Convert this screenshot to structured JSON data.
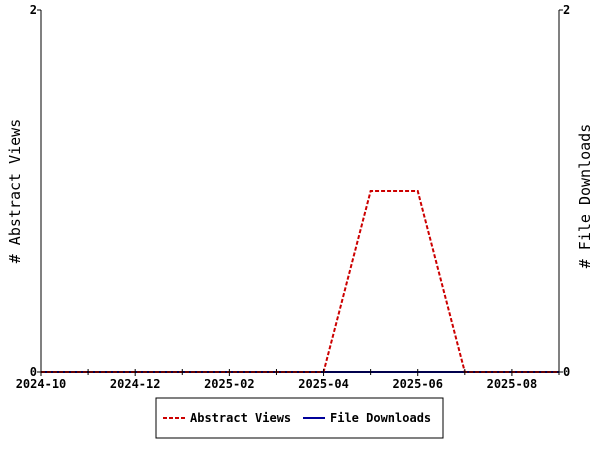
{
  "chart_data": {
    "type": "line",
    "title": "",
    "x": [
      "2024-10",
      "2024-11",
      "2024-12",
      "2025-01",
      "2025-02",
      "2025-03",
      "2025-04",
      "2025-05",
      "2025-06",
      "2025-07",
      "2025-08",
      "2025-09"
    ],
    "x_tick_labels": [
      "2024-10",
      "2024-12",
      "2025-02",
      "2025-04",
      "2025-06",
      "2025-08"
    ],
    "y_left": {
      "label": "# Abstract Views",
      "ylim": [
        0,
        2
      ],
      "tick_labels": [
        "0",
        "2"
      ]
    },
    "y_right": {
      "label": "# File Downloads",
      "ylim": [
        0,
        2
      ],
      "tick_labels": [
        "0",
        "2"
      ]
    },
    "series": [
      {
        "name": "Abstract Views",
        "axis": "left",
        "color": "#cc0000",
        "dash": "dashed",
        "values": [
          0,
          0,
          0,
          0,
          0,
          0,
          0,
          1,
          1,
          0,
          0,
          0
        ]
      },
      {
        "name": "File Downloads",
        "axis": "right",
        "color": "#000099",
        "dash": "solid",
        "values": [
          0,
          0,
          0,
          0,
          0,
          0,
          0,
          0,
          0,
          0,
          0,
          0
        ]
      }
    ],
    "grid": false,
    "legend_position": "bottom-center"
  }
}
